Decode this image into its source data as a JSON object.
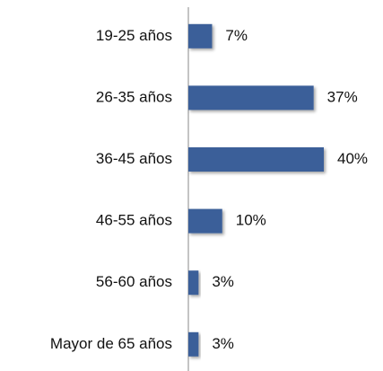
{
  "chart_data": {
    "type": "bar",
    "orientation": "horizontal",
    "categories": [
      "19-25 años",
      "26-35 años",
      "36-45 años",
      "46-55 años",
      "56-60 años",
      "Mayor de 65 años"
    ],
    "values": [
      7,
      37,
      40,
      10,
      3,
      3
    ],
    "value_labels": [
      "7%",
      "37%",
      "40%",
      "10%",
      "3%",
      "3%"
    ],
    "color": "#3a5f99"
  }
}
